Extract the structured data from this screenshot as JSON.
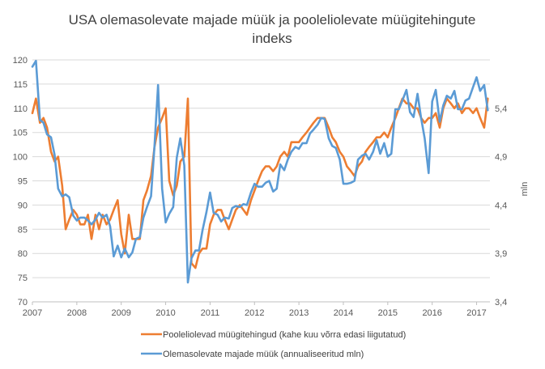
{
  "chart_data": {
    "type": "line",
    "title_line1": "USA olemasolevate majade müük ja pooleliolevate müügitehingute",
    "title_line2": "indeks",
    "x_ticks": [
      "2007",
      "2008",
      "2009",
      "2010",
      "2011",
      "2012",
      "2013",
      "2014",
      "2015",
      "2016",
      "2017"
    ],
    "x_range": [
      2007.0,
      2017.3
    ],
    "y_left": {
      "min": 70,
      "max": 120,
      "ticks": [
        "70",
        "75",
        "80",
        "85",
        "90",
        "95",
        "100",
        "105",
        "110",
        "115",
        "120"
      ]
    },
    "y_right": {
      "min": 3.4,
      "max": 5.9,
      "label": "mln",
      "ticks": [
        "3,4",
        "3,9",
        "4,4",
        "4,9",
        "5,4"
      ]
    },
    "grid": "horizontal",
    "legend_position": "bottom",
    "series": [
      {
        "name": "Pooleliolevad müügitehingud (kahe kuu võrra edasi liigutatud)",
        "axis": "left",
        "color": "#ED7D31",
        "points": [
          [
            2007.0,
            109
          ],
          [
            2007.08,
            112
          ],
          [
            2007.17,
            107
          ],
          [
            2007.25,
            108
          ],
          [
            2007.33,
            106
          ],
          [
            2007.42,
            101
          ],
          [
            2007.5,
            99
          ],
          [
            2007.58,
            100
          ],
          [
            2007.67,
            94
          ],
          [
            2007.75,
            85
          ],
          [
            2007.83,
            87
          ],
          [
            2007.92,
            89
          ],
          [
            2008.0,
            88
          ],
          [
            2008.08,
            86
          ],
          [
            2008.17,
            86
          ],
          [
            2008.25,
            88
          ],
          [
            2008.33,
            83
          ],
          [
            2008.42,
            88
          ],
          [
            2008.5,
            85
          ],
          [
            2008.58,
            88
          ],
          [
            2008.67,
            86
          ],
          [
            2008.75,
            87
          ],
          [
            2008.83,
            89
          ],
          [
            2008.92,
            91
          ],
          [
            2009.0,
            84
          ],
          [
            2009.08,
            80
          ],
          [
            2009.17,
            88
          ],
          [
            2009.25,
            83
          ],
          [
            2009.33,
            83
          ],
          [
            2009.42,
            83
          ],
          [
            2009.5,
            91
          ],
          [
            2009.58,
            93
          ],
          [
            2009.67,
            96
          ],
          [
            2009.75,
            102
          ],
          [
            2009.83,
            106
          ],
          [
            2009.92,
            108
          ],
          [
            2010.0,
            110
          ],
          [
            2010.08,
            95
          ],
          [
            2010.17,
            92
          ],
          [
            2010.25,
            94
          ],
          [
            2010.33,
            99
          ],
          [
            2010.42,
            100
          ],
          [
            2010.5,
            112
          ],
          [
            2010.58,
            78
          ],
          [
            2010.67,
            77
          ],
          [
            2010.75,
            80
          ],
          [
            2010.83,
            81
          ],
          [
            2010.92,
            81
          ],
          [
            2011.0,
            86
          ],
          [
            2011.08,
            88
          ],
          [
            2011.17,
            89
          ],
          [
            2011.25,
            89
          ],
          [
            2011.33,
            87
          ],
          [
            2011.42,
            85
          ],
          [
            2011.5,
            87
          ],
          [
            2011.58,
            89
          ],
          [
            2011.67,
            90
          ],
          [
            2011.75,
            89
          ],
          [
            2011.83,
            88
          ],
          [
            2011.92,
            91
          ],
          [
            2012.0,
            93
          ],
          [
            2012.08,
            95
          ],
          [
            2012.17,
            97
          ],
          [
            2012.25,
            98
          ],
          [
            2012.33,
            98
          ],
          [
            2012.42,
            97
          ],
          [
            2012.5,
            98
          ],
          [
            2012.58,
            100
          ],
          [
            2012.67,
            101
          ],
          [
            2012.75,
            100
          ],
          [
            2012.83,
            103
          ],
          [
            2012.92,
            103
          ],
          [
            2013.0,
            103
          ],
          [
            2013.08,
            104
          ],
          [
            2013.17,
            105
          ],
          [
            2013.25,
            106
          ],
          [
            2013.33,
            107
          ],
          [
            2013.42,
            108
          ],
          [
            2013.5,
            108
          ],
          [
            2013.58,
            108
          ],
          [
            2013.67,
            106
          ],
          [
            2013.75,
            104
          ],
          [
            2013.83,
            103
          ],
          [
            2013.92,
            101
          ],
          [
            2014.0,
            100
          ],
          [
            2014.08,
            98
          ],
          [
            2014.17,
            97
          ],
          [
            2014.25,
            96
          ],
          [
            2014.33,
            98
          ],
          [
            2014.42,
            99
          ],
          [
            2014.5,
            101
          ],
          [
            2014.58,
            102
          ],
          [
            2014.67,
            103
          ],
          [
            2014.75,
            104
          ],
          [
            2014.83,
            104
          ],
          [
            2014.92,
            105
          ],
          [
            2015.0,
            104
          ],
          [
            2015.08,
            106
          ],
          [
            2015.17,
            108
          ],
          [
            2015.25,
            110
          ],
          [
            2015.33,
            112
          ],
          [
            2015.42,
            111
          ],
          [
            2015.5,
            111
          ],
          [
            2015.58,
            110
          ],
          [
            2015.67,
            110
          ],
          [
            2015.75,
            108
          ],
          [
            2015.83,
            107
          ],
          [
            2015.92,
            108
          ],
          [
            2016.0,
            108
          ],
          [
            2016.08,
            109
          ],
          [
            2016.17,
            106
          ],
          [
            2016.25,
            110
          ],
          [
            2016.33,
            112
          ],
          [
            2016.42,
            111
          ],
          [
            2016.5,
            110
          ],
          [
            2016.58,
            111
          ],
          [
            2016.67,
            109
          ],
          [
            2016.75,
            110
          ],
          [
            2016.83,
            110
          ],
          [
            2016.92,
            109
          ],
          [
            2017.0,
            110
          ],
          [
            2017.08,
            108
          ],
          [
            2017.17,
            106
          ],
          [
            2017.25,
            112
          ]
        ]
      },
      {
        "name": "Olemasolevate majade müük (annualiseeritud mln)",
        "axis": "right",
        "color": "#5B9BD5",
        "points": [
          [
            2007.0,
            5.83
          ],
          [
            2007.08,
            5.89
          ],
          [
            2007.17,
            5.28
          ],
          [
            2007.25,
            5.25
          ],
          [
            2007.33,
            5.13
          ],
          [
            2007.42,
            5.1
          ],
          [
            2007.5,
            4.92
          ],
          [
            2007.58,
            4.57
          ],
          [
            2007.67,
            4.49
          ],
          [
            2007.75,
            4.51
          ],
          [
            2007.83,
            4.48
          ],
          [
            2007.92,
            4.29
          ],
          [
            2008.0,
            4.24
          ],
          [
            2008.08,
            4.27
          ],
          [
            2008.17,
            4.27
          ],
          [
            2008.25,
            4.24
          ],
          [
            2008.33,
            4.2
          ],
          [
            2008.42,
            4.25
          ],
          [
            2008.5,
            4.32
          ],
          [
            2008.58,
            4.27
          ],
          [
            2008.67,
            4.3
          ],
          [
            2008.75,
            4.18
          ],
          [
            2008.83,
            3.87
          ],
          [
            2008.92,
            3.98
          ],
          [
            2009.0,
            3.86
          ],
          [
            2009.08,
            3.95
          ],
          [
            2009.17,
            3.86
          ],
          [
            2009.25,
            3.91
          ],
          [
            2009.33,
            4.05
          ],
          [
            2009.42,
            4.07
          ],
          [
            2009.5,
            4.27
          ],
          [
            2009.58,
            4.38
          ],
          [
            2009.67,
            4.49
          ],
          [
            2009.75,
            5.01
          ],
          [
            2009.83,
            5.64
          ],
          [
            2009.92,
            4.57
          ],
          [
            2010.0,
            4.22
          ],
          [
            2010.08,
            4.31
          ],
          [
            2010.17,
            4.38
          ],
          [
            2010.25,
            4.89
          ],
          [
            2010.33,
            5.09
          ],
          [
            2010.42,
            4.81
          ],
          [
            2010.5,
            3.6
          ],
          [
            2010.58,
            3.85
          ],
          [
            2010.67,
            3.93
          ],
          [
            2010.75,
            3.93
          ],
          [
            2010.83,
            4.14
          ],
          [
            2010.92,
            4.33
          ],
          [
            2011.0,
            4.53
          ],
          [
            2011.08,
            4.32
          ],
          [
            2011.17,
            4.3
          ],
          [
            2011.25,
            4.23
          ],
          [
            2011.33,
            4.27
          ],
          [
            2011.42,
            4.26
          ],
          [
            2011.5,
            4.37
          ],
          [
            2011.58,
            4.39
          ],
          [
            2011.67,
            4.38
          ],
          [
            2011.75,
            4.41
          ],
          [
            2011.83,
            4.4
          ],
          [
            2011.92,
            4.53
          ],
          [
            2012.0,
            4.62
          ],
          [
            2012.08,
            4.59
          ],
          [
            2012.17,
            4.59
          ],
          [
            2012.25,
            4.63
          ],
          [
            2012.33,
            4.65
          ],
          [
            2012.42,
            4.54
          ],
          [
            2012.5,
            4.57
          ],
          [
            2012.58,
            4.82
          ],
          [
            2012.67,
            4.76
          ],
          [
            2012.75,
            4.87
          ],
          [
            2012.83,
            4.95
          ],
          [
            2012.92,
            5.0
          ],
          [
            2013.0,
            4.98
          ],
          [
            2013.08,
            5.04
          ],
          [
            2013.17,
            5.04
          ],
          [
            2013.25,
            5.14
          ],
          [
            2013.33,
            5.18
          ],
          [
            2013.42,
            5.23
          ],
          [
            2013.5,
            5.3
          ],
          [
            2013.58,
            5.29
          ],
          [
            2013.67,
            5.09
          ],
          [
            2013.75,
            5.01
          ],
          [
            2013.83,
            4.99
          ],
          [
            2013.92,
            4.87
          ],
          [
            2014.0,
            4.62
          ],
          [
            2014.08,
            4.62
          ],
          [
            2014.17,
            4.63
          ],
          [
            2014.25,
            4.65
          ],
          [
            2014.33,
            4.87
          ],
          [
            2014.42,
            4.91
          ],
          [
            2014.5,
            4.93
          ],
          [
            2014.58,
            4.87
          ],
          [
            2014.67,
            4.95
          ],
          [
            2014.75,
            5.07
          ],
          [
            2014.83,
            4.93
          ],
          [
            2014.92,
            5.04
          ],
          [
            2015.0,
            4.9
          ],
          [
            2015.08,
            4.93
          ],
          [
            2015.17,
            5.39
          ],
          [
            2015.25,
            5.39
          ],
          [
            2015.33,
            5.48
          ],
          [
            2015.42,
            5.59
          ],
          [
            2015.5,
            5.36
          ],
          [
            2015.58,
            5.31
          ],
          [
            2015.67,
            5.55
          ],
          [
            2015.75,
            5.3
          ],
          [
            2015.83,
            5.09
          ],
          [
            2015.92,
            4.73
          ],
          [
            2016.0,
            5.47
          ],
          [
            2016.08,
            5.59
          ],
          [
            2016.17,
            5.26
          ],
          [
            2016.25,
            5.43
          ],
          [
            2016.33,
            5.53
          ],
          [
            2016.42,
            5.5
          ],
          [
            2016.5,
            5.58
          ],
          [
            2016.58,
            5.39
          ],
          [
            2016.67,
            5.39
          ],
          [
            2016.75,
            5.48
          ],
          [
            2016.83,
            5.5
          ],
          [
            2016.92,
            5.62
          ],
          [
            2017.0,
            5.72
          ],
          [
            2017.08,
            5.58
          ],
          [
            2017.17,
            5.64
          ],
          [
            2017.25,
            5.38
          ]
        ]
      }
    ]
  }
}
